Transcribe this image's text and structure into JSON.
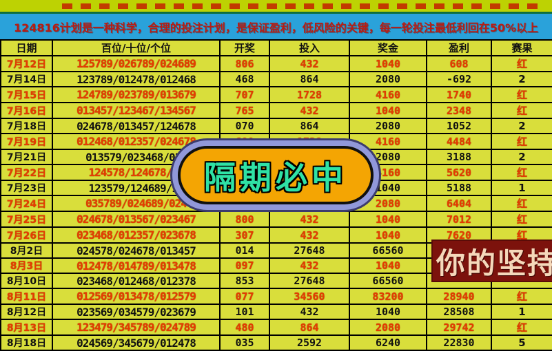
{
  "banner": {
    "text": "124816计划是一种科学，合理的投注计划，是保证盈利，低风险的关键，每一轮投注最低利回在50%以上"
  },
  "badge": {
    "text": "隔期必中"
  },
  "overlay": {
    "text": "你的坚持"
  },
  "table": {
    "headers": [
      "日期",
      "百位/十位/个位",
      "开奖",
      "投入",
      "奖金",
      "盈利",
      "赛果"
    ],
    "rows": [
      {
        "date": "7月12日",
        "combo": "125789/026789/024689",
        "draw": "806",
        "stake": "432",
        "prize": "1040",
        "profit": "608",
        "result": "红",
        "red": true
      },
      {
        "date": "7月14日",
        "combo": "123789/012478/012468",
        "draw": "468",
        "stake": "864",
        "prize": "2080",
        "profit": "-692",
        "result": "2",
        "red": false
      },
      {
        "date": "7月15日",
        "combo": "124789/023789/013679",
        "draw": "707",
        "stake": "1728",
        "prize": "4160",
        "profit": "1740",
        "result": "红",
        "red": true
      },
      {
        "date": "7月16日",
        "combo": "013457/123467/134567",
        "draw": "765",
        "stake": "432",
        "prize": "1040",
        "profit": "2348",
        "result": "红",
        "red": true
      },
      {
        "date": "7月18日",
        "combo": "024678/013457/124678",
        "draw": "070",
        "stake": "864",
        "prize": "2080",
        "profit": "1052",
        "result": "2",
        "red": false
      },
      {
        "date": "7月19日",
        "combo": "012468/012357/024678",
        "draw": "600",
        "stake": "1728",
        "prize": "4160",
        "profit": "4484",
        "result": "红",
        "red": true
      },
      {
        "date": "7月21日",
        "combo": "013579/023468/034",
        "draw": "",
        "stake": "",
        "prize": "2080",
        "profit": "3188",
        "result": "2",
        "red": false
      },
      {
        "date": "7月22日",
        "combo": "124578/124678/12",
        "draw": "",
        "stake": "",
        "prize": "4160",
        "profit": "5620",
        "result": "红",
        "red": true
      },
      {
        "date": "7月23日",
        "combo": "123579/124689/12",
        "draw": "",
        "stake": "",
        "prize": "1040",
        "profit": "5188",
        "result": "1",
        "red": false
      },
      {
        "date": "7月24日",
        "combo": "035789/024689/024",
        "draw": "",
        "stake": "",
        "prize": "2080",
        "profit": "6404",
        "result": "红",
        "red": true
      },
      {
        "date": "7月25日",
        "combo": "024678/013567/023467",
        "draw": "800",
        "stake": "432",
        "prize": "1040",
        "profit": "7012",
        "result": "红",
        "red": true
      },
      {
        "date": "7月26日",
        "combo": "023468/012357/023678",
        "draw": "307",
        "stake": "432",
        "prize": "1040",
        "profit": "7620",
        "result": "红",
        "red": true
      },
      {
        "date": "8月2日",
        "combo": "024578/024678/013457",
        "draw": "014",
        "stake": "27648",
        "prize": "66560",
        "profit": "",
        "result": "",
        "red": false
      },
      {
        "date": "8月3日",
        "combo": "012478/014789/013478",
        "draw": "097",
        "stake": "432",
        "prize": "1040",
        "profit": "",
        "result": "",
        "red": true
      },
      {
        "date": "8月10日",
        "combo": "023468/012468/012378",
        "draw": "853",
        "stake": "27648",
        "prize": "66560",
        "profit": "",
        "result": "",
        "red": false
      },
      {
        "date": "8月11日",
        "combo": "012569/013478/012579",
        "draw": "077",
        "stake": "34560",
        "prize": "83200",
        "profit": "28940",
        "result": "红",
        "red": true
      },
      {
        "date": "8月12日",
        "combo": "023569/034579/023679",
        "draw": "101",
        "stake": "432",
        "prize": "1040",
        "profit": "28508",
        "result": "1",
        "red": false
      },
      {
        "date": "8月13日",
        "combo": "123479/345789/024789",
        "draw": "480",
        "stake": "864",
        "prize": "2080",
        "profit": "29742",
        "result": "红",
        "red": true
      },
      {
        "date": "8月18日",
        "combo": "024569/345679/012478",
        "draw": "035",
        "stake": "2592",
        "prize": "6240",
        "profit": "22830",
        "result": "5",
        "red": false
      }
    ]
  },
  "colors": {
    "cell_bg": "#d9de3b",
    "red_text": "#e63c00",
    "black_text": "#111111",
    "banner_bg": "#2aa2da",
    "banner_text": "#b91c12",
    "top_strip_bg": "#bdd203",
    "badge_fill": "#f4a503",
    "badge_text": "#2fe2a5",
    "badge_ring": "#9198da",
    "overlay_bg": "#7c120c",
    "overlay_text": "#f5d8ba"
  }
}
